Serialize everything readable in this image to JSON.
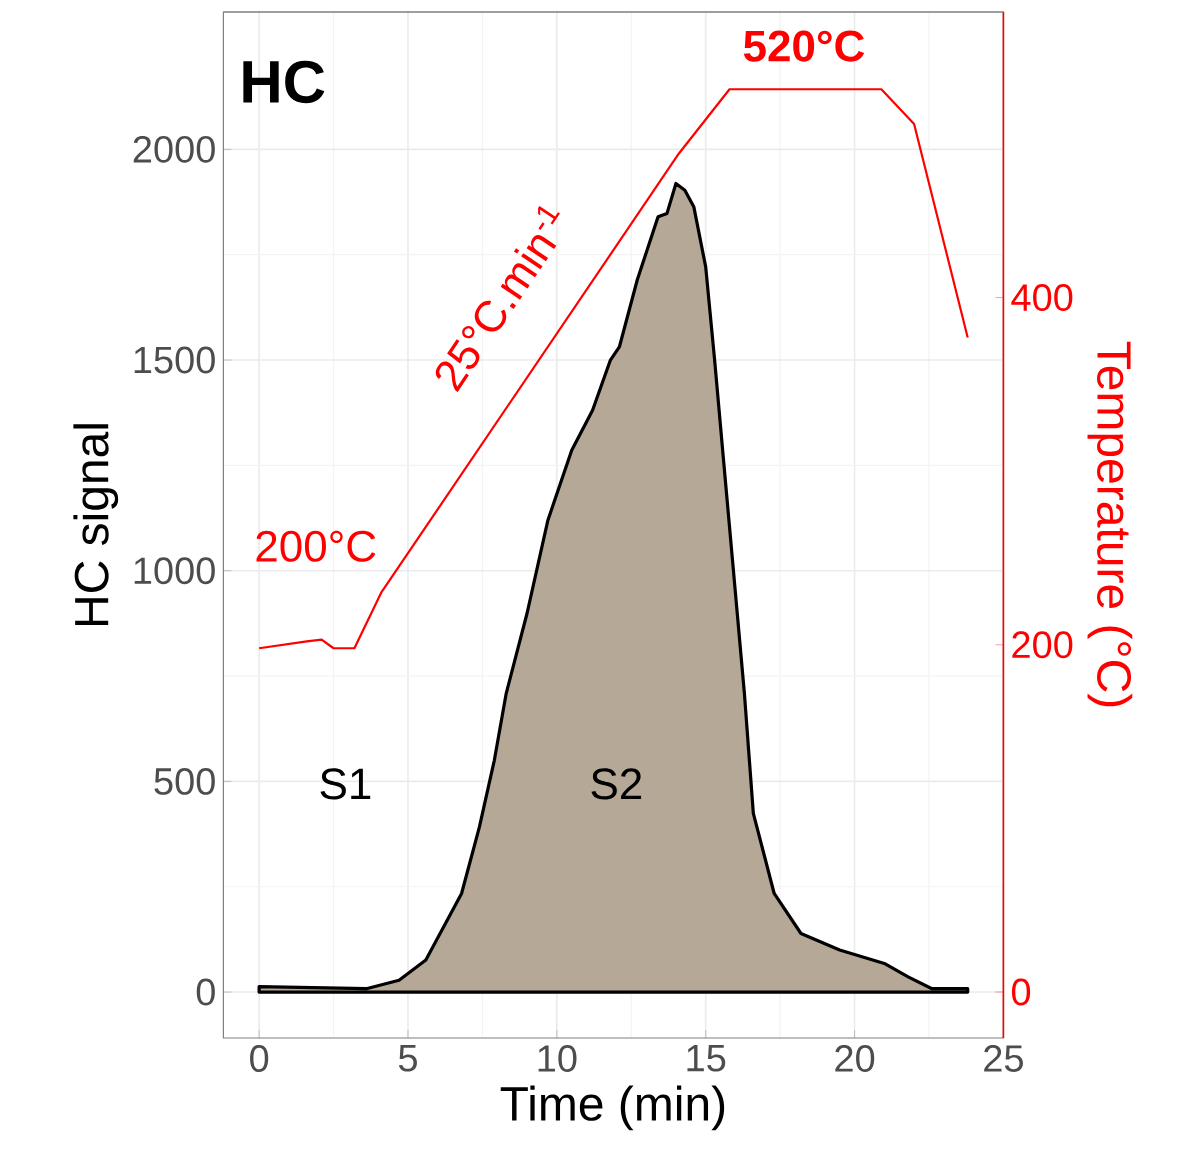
{
  "chart_data": {
    "type": "area",
    "title": "HC",
    "xlabel": "Time (min)",
    "ylabel": "HC signal",
    "y2label": "Temperature (°C)",
    "xlim": [
      -1.2,
      25
    ],
    "xticks": [
      0,
      5,
      10,
      15,
      20,
      25
    ],
    "ylim": [
      -109,
      2326
    ],
    "yticks": [
      0,
      500,
      1000,
      1500,
      2000
    ],
    "y2lim": [
      -26.5,
      564.5
    ],
    "y2ticks": [
      0,
      200,
      400
    ],
    "grid": true,
    "marker": "none",
    "series": [
      {
        "color": "#b5a897",
        "x": [
          0,
          3.6,
          4.7,
          5.6,
          6.8,
          7.4,
          7.9,
          8.3,
          9.0,
          9.7,
          10.5,
          11.2,
          11.8,
          12.1,
          12.7,
          13.4,
          13.7,
          14.0,
          14.3,
          14.6,
          15.0,
          15.3,
          15.6,
          15.9,
          16.3,
          16.6,
          17.3,
          18.2,
          19.5,
          21.0,
          21.8,
          22.6,
          23.8
        ],
        "values": [
          13,
          8,
          28,
          76,
          234,
          392,
          550,
          709,
          899,
          1120,
          1286,
          1381,
          1500,
          1531,
          1690,
          1840,
          1848,
          1919,
          1903,
          1864,
          1721,
          1500,
          1262,
          1025,
          709,
          424,
          234,
          139,
          100,
          68,
          36,
          8,
          8
        ]
      },
      {
        "type": "line",
        "axis": "y2",
        "color": "#ff0000",
        "x": [
          0,
          1.6,
          2.1,
          2.5,
          3.2,
          4.1,
          14.1,
          15.8,
          20.9,
          22.0,
          23.8
        ],
        "values": [
          198,
          202,
          203,
          198,
          198,
          230,
          483,
          520,
          520,
          500,
          377
        ]
      }
    ],
    "annotations": [
      "200°C",
      "25°C.min$^{-1}$",
      "520°C",
      "S1",
      "S2"
    ]
  }
}
